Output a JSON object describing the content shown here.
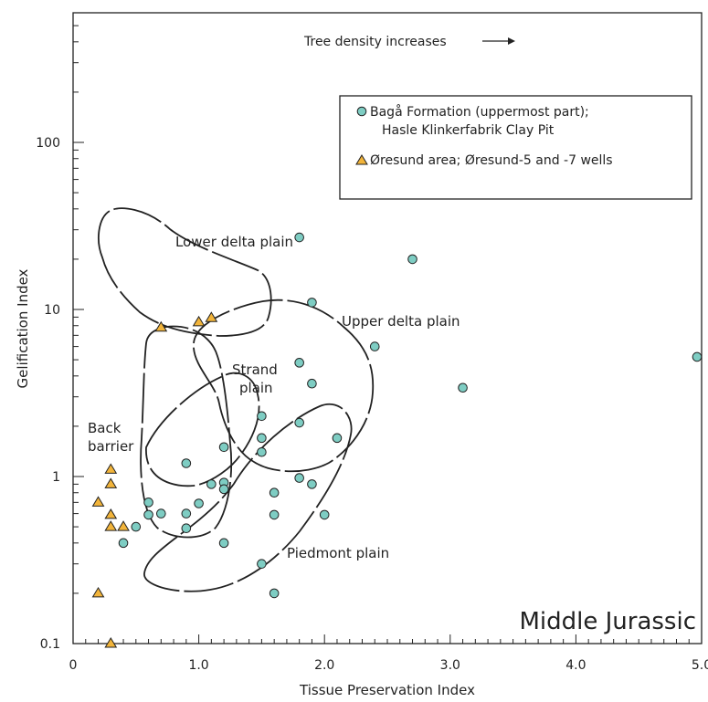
{
  "chart_data": {
    "type": "scatter",
    "xlabel": "Tissue Preservation Index",
    "ylabel": "Gelification Index",
    "xlim": [
      0,
      5.0
    ],
    "ylim": [
      0.1,
      500
    ],
    "yscale": "log",
    "x_ticks": [
      {
        "value": 0,
        "label": "0"
      },
      {
        "value": 1.0,
        "label": "1.0"
      },
      {
        "value": 2.0,
        "label": "2.0"
      },
      {
        "value": 3.0,
        "label": "3.0"
      },
      {
        "value": 4.0,
        "label": "4.0"
      },
      {
        "value": 5.0,
        "label": "5.0"
      }
    ],
    "y_ticks": [
      {
        "value": 0.1,
        "label": "0.1"
      },
      {
        "value": 1,
        "label": "1"
      },
      {
        "value": 10,
        "label": "10"
      },
      {
        "value": 100,
        "label": "100"
      }
    ],
    "corner_title": "Middle Jurassic",
    "annotation": "Tree density increases",
    "legend": {
      "position": "top-right",
      "entries": [
        {
          "symbol": "circle",
          "lines": [
            "Bagå Formation (uppermost part);",
            "Hasle Klinkerfabrik Clay Pit"
          ]
        },
        {
          "symbol": "triangle",
          "lines": [
            "Øresund area; Øresund-5 and -7 wells"
          ]
        }
      ]
    },
    "region_labels": [
      {
        "lines": [
          "Lower delta plain"
        ]
      },
      {
        "lines": [
          "Upper delta plain"
        ]
      },
      {
        "lines": [
          "Strand",
          "plain"
        ]
      },
      {
        "lines": [
          "Back",
          "barrier"
        ]
      },
      {
        "lines": [
          "Piedmont plain"
        ]
      }
    ],
    "series": [
      {
        "name": "Bagå Formation (uppermost part); Hasle Klinkerfabrik Clay Pit",
        "marker": "circle",
        "color": "#7ecdc3",
        "points": [
          {
            "x": 1.8,
            "y": 27
          },
          {
            "x": 2.7,
            "y": 20
          },
          {
            "x": 1.9,
            "y": 11
          },
          {
            "x": 2.4,
            "y": 6
          },
          {
            "x": 1.8,
            "y": 4.8
          },
          {
            "x": 5.0,
            "y": 5.2
          },
          {
            "x": 1.9,
            "y": 3.6
          },
          {
            "x": 3.1,
            "y": 3.4
          },
          {
            "x": 1.5,
            "y": 2.3
          },
          {
            "x": 1.8,
            "y": 2.1
          },
          {
            "x": 1.5,
            "y": 1.7
          },
          {
            "x": 2.1,
            "y": 1.7
          },
          {
            "x": 1.2,
            "y": 1.5
          },
          {
            "x": 1.5,
            "y": 1.4
          },
          {
            "x": 0.9,
            "y": 1.2
          },
          {
            "x": 1.8,
            "y": 0.98
          },
          {
            "x": 1.1,
            "y": 0.9
          },
          {
            "x": 1.2,
            "y": 0.92
          },
          {
            "x": 1.9,
            "y": 0.9
          },
          {
            "x": 1.2,
            "y": 0.84
          },
          {
            "x": 1.6,
            "y": 0.8
          },
          {
            "x": 0.6,
            "y": 0.7
          },
          {
            "x": 1.0,
            "y": 0.69
          },
          {
            "x": 0.6,
            "y": 0.59
          },
          {
            "x": 0.7,
            "y": 0.6
          },
          {
            "x": 0.9,
            "y": 0.6
          },
          {
            "x": 1.6,
            "y": 0.59
          },
          {
            "x": 2.0,
            "y": 0.59
          },
          {
            "x": 0.5,
            "y": 0.5
          },
          {
            "x": 0.9,
            "y": 0.49
          },
          {
            "x": 0.4,
            "y": 0.4
          },
          {
            "x": 1.2,
            "y": 0.4
          },
          {
            "x": 1.5,
            "y": 0.3
          },
          {
            "x": 1.6,
            "y": 0.2
          }
        ]
      },
      {
        "name": "Øresund area; Øresund-5 and -7 wells",
        "marker": "triangle",
        "color": "#f2b43a",
        "points": [
          {
            "x": 0.7,
            "y": 7.8
          },
          {
            "x": 1.0,
            "y": 8.4
          },
          {
            "x": 1.1,
            "y": 8.9
          },
          {
            "x": 0.3,
            "y": 1.1
          },
          {
            "x": 0.3,
            "y": 0.9
          },
          {
            "x": 0.2,
            "y": 0.7
          },
          {
            "x": 0.3,
            "y": 0.59
          },
          {
            "x": 0.3,
            "y": 0.5
          },
          {
            "x": 0.4,
            "y": 0.5
          },
          {
            "x": 0.2,
            "y": 0.2
          },
          {
            "x": 0.3,
            "y": 0.1
          }
        ]
      }
    ]
  }
}
